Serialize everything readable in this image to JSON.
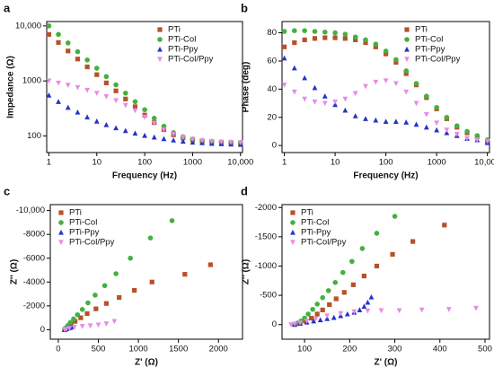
{
  "chart_data": [
    {
      "type": "scatter",
      "label": "a",
      "x_label": "Frequency (Hz)",
      "y_label": "Impedance (Ω)",
      "xscale": "log",
      "yscale": "log",
      "legend": "upper right",
      "xlim": [
        0.9,
        11000
      ],
      "ylim": [
        50,
        12000
      ],
      "xticks": [
        1,
        10,
        100,
        1000,
        {
          "value": 10000,
          "label": "10,000"
        }
      ],
      "yticks": [
        100,
        1000,
        {
          "value": 10000,
          "label": "10,000"
        }
      ],
      "x": [
        1,
        1.58,
        2.51,
        3.98,
        6.31,
        10,
        15.8,
        25.1,
        39.8,
        63.1,
        100,
        158,
        251,
        398,
        631,
        1000,
        1580,
        2510,
        3980,
        6310,
        10000
      ],
      "series": [
        {
          "name": "PTi",
          "color": "#b5522b",
          "marker": "square",
          "values": [
            7000,
            5000,
            3500,
            2500,
            1800,
            1300,
            920,
            660,
            470,
            340,
            240,
            175,
            130,
            105,
            92,
            85,
            80,
            78,
            76,
            75,
            74
          ]
        },
        {
          "name": "PTi-Col",
          "color": "#45b03f",
          "marker": "circle",
          "values": [
            10000,
            7000,
            4900,
            3400,
            2400,
            1700,
            1200,
            850,
            600,
            420,
            300,
            210,
            150,
            115,
            97,
            88,
            83,
            80,
            78,
            77,
            76
          ]
        },
        {
          "name": "PTi-Ppy",
          "color": "#2535c8",
          "marker": "triangle",
          "values": [
            550,
            420,
            330,
            270,
            220,
            185,
            160,
            140,
            125,
            112,
            102,
            95,
            89,
            84,
            80,
            77,
            75,
            73,
            72,
            71,
            70
          ]
        },
        {
          "name": "PTi-Col/Ppy",
          "color": "#e58be8",
          "marker": "triangle-down",
          "values": [
            1000,
            920,
            840,
            760,
            680,
            600,
            520,
            440,
            360,
            290,
            220,
            170,
            130,
            108,
            95,
            88,
            83,
            80,
            78,
            77,
            76
          ]
        }
      ]
    },
    {
      "type": "scatter",
      "label": "b",
      "x_label": "Frequency (Hz)",
      "y_label": "Phase (deg)",
      "xscale": "log",
      "legend": "upper right",
      "xlim": [
        0.9,
        11000
      ],
      "ylim": [
        -5,
        88
      ],
      "xticks": [
        1,
        10,
        100,
        1000,
        {
          "value": 10000,
          "label": "10,000"
        }
      ],
      "yticks": [
        0,
        20,
        40,
        60,
        80
      ],
      "x": [
        1,
        1.58,
        2.51,
        3.98,
        6.31,
        10,
        15.8,
        25.1,
        39.8,
        63.1,
        100,
        158,
        251,
        398,
        631,
        1000,
        1580,
        2510,
        3980,
        6310,
        10000
      ],
      "series": [
        {
          "name": "PTi",
          "color": "#b5522b",
          "marker": "square",
          "values": [
            70,
            73,
            75,
            76,
            76.5,
            76.5,
            76,
            75,
            73,
            70,
            65,
            59,
            51,
            43,
            34,
            26,
            19,
            13,
            9,
            6,
            3
          ]
        },
        {
          "name": "PTi-Col",
          "color": "#45b03f",
          "marker": "circle",
          "values": [
            81,
            81.5,
            81.5,
            81,
            80.5,
            80,
            79,
            77,
            75,
            72,
            67,
            61,
            53,
            44,
            35,
            27,
            20,
            14,
            10,
            7,
            4
          ]
        },
        {
          "name": "PTi-Ppy",
          "color": "#2535c8",
          "marker": "triangle",
          "values": [
            62,
            55,
            48,
            41,
            35,
            29,
            25,
            21,
            19,
            18,
            17,
            17,
            16.5,
            15,
            13,
            11,
            9,
            7,
            5,
            4,
            2
          ]
        },
        {
          "name": "PTi-Col/Ppy",
          "color": "#e58be8",
          "marker": "triangle-down",
          "values": [
            43,
            38,
            33,
            31,
            30,
            31,
            33,
            37,
            42,
            45,
            46,
            44,
            38,
            30,
            22,
            16,
            11,
            8,
            5,
            4,
            3
          ]
        }
      ]
    },
    {
      "type": "scatter",
      "label": "c",
      "x_label": "Z' (Ω)",
      "y_label": "Z'' (Ω)",
      "legend": "upper left",
      "xlim": [
        -100,
        2300
      ],
      "ylim": [
        800,
        -10500
      ],
      "xticks": [
        0,
        500,
        1000,
        1500,
        2000
      ],
      "yticks": [
        0,
        -2000,
        -4000,
        -6000,
        -8000,
        {
          "value": -10000,
          "label": "-10,000"
        }
      ],
      "series": [
        {
          "name": "PTi",
          "color": "#b5522b",
          "marker": "square",
          "x": [
            1900,
            1580,
            1170,
            950,
            760,
            600,
            470,
            360,
            280,
            210,
            160,
            120,
            95,
            80
          ],
          "values": [
            -5450,
            -4650,
            -4000,
            -3300,
            -2700,
            -2200,
            -1750,
            -1350,
            -1000,
            -700,
            -450,
            -250,
            -100,
            -20
          ]
        },
        {
          "name": "PTi-Col",
          "color": "#45b03f",
          "marker": "circle",
          "x": [
            1420,
            1150,
            900,
            720,
            580,
            460,
            370,
            300,
            240,
            190,
            150,
            120,
            95,
            80
          ],
          "values": [
            -9150,
            -7700,
            -6000,
            -4700,
            -3700,
            -2900,
            -2250,
            -1700,
            -1250,
            -900,
            -600,
            -350,
            -150,
            -30
          ]
        },
        {
          "name": "PTi-Ppy",
          "color": "#2535c8",
          "marker": "triangle",
          "x": [
            180,
            150,
            130,
            110,
            95,
            85,
            78,
            75
          ],
          "values": [
            -250,
            -180,
            -140,
            -100,
            -60,
            -30,
            -10,
            0
          ]
        },
        {
          "name": "PTi-Col/Ppy",
          "color": "#e58be8",
          "marker": "triangle-down",
          "x": [
            700,
            600,
            500,
            400,
            300,
            200,
            140,
            100,
            80
          ],
          "values": [
            -700,
            -500,
            -400,
            -330,
            -280,
            -200,
            -120,
            -50,
            -10
          ]
        }
      ]
    },
    {
      "type": "scatter",
      "label": "d",
      "x_label": "Z' (Ω)",
      "y_label": "Z'' (Ω)",
      "legend": "upper left",
      "xlim": [
        50,
        510
      ],
      "ylim": [
        250,
        -2050
      ],
      "xticks": [
        100,
        200,
        300,
        400,
        500
      ],
      "yticks": [
        0,
        -500,
        -1000,
        -1500,
        -2000
      ],
      "series": [
        {
          "name": "PTi",
          "color": "#b5522b",
          "marker": "square",
          "x": [
            410,
            340,
            295,
            260,
            232,
            208,
            188,
            170,
            155,
            140,
            128,
            115,
            102,
            90,
            78
          ],
          "values": [
            -1700,
            -1420,
            -1200,
            -1000,
            -830,
            -680,
            -550,
            -440,
            -340,
            -250,
            -180,
            -110,
            -60,
            -20,
            0
          ]
        },
        {
          "name": "PTi-Col",
          "color": "#45b03f",
          "marker": "circle",
          "x": [
            300,
            260,
            228,
            205,
            185,
            168,
            153,
            140,
            128,
            118,
            108,
            100,
            92,
            84,
            77
          ],
          "values": [
            -1850,
            -1560,
            -1300,
            -1080,
            -890,
            -720,
            -580,
            -460,
            -350,
            -260,
            -180,
            -110,
            -60,
            -25,
            0
          ]
        },
        {
          "name": "PTi-Ppy",
          "color": "#2535c8",
          "marker": "triangle",
          "x": [
            248,
            240,
            232,
            222,
            210,
            195,
            180,
            165,
            150,
            135,
            120,
            105,
            90,
            78
          ],
          "values": [
            -470,
            -380,
            -310,
            -250,
            -210,
            -180,
            -150,
            -120,
            -100,
            -80,
            -60,
            -40,
            -20,
            -5
          ]
        },
        {
          "name": "PTi-Col/Ppy",
          "color": "#e58be8",
          "marker": "triangle-down",
          "x": [
            480,
            420,
            360,
            310,
            270,
            240,
            210,
            180,
            150,
            125,
            105,
            90,
            78,
            70
          ],
          "values": [
            -280,
            -260,
            -250,
            -240,
            -240,
            -235,
            -220,
            -190,
            -150,
            -100,
            -60,
            -30,
            -10,
            0
          ]
        }
      ]
    }
  ]
}
